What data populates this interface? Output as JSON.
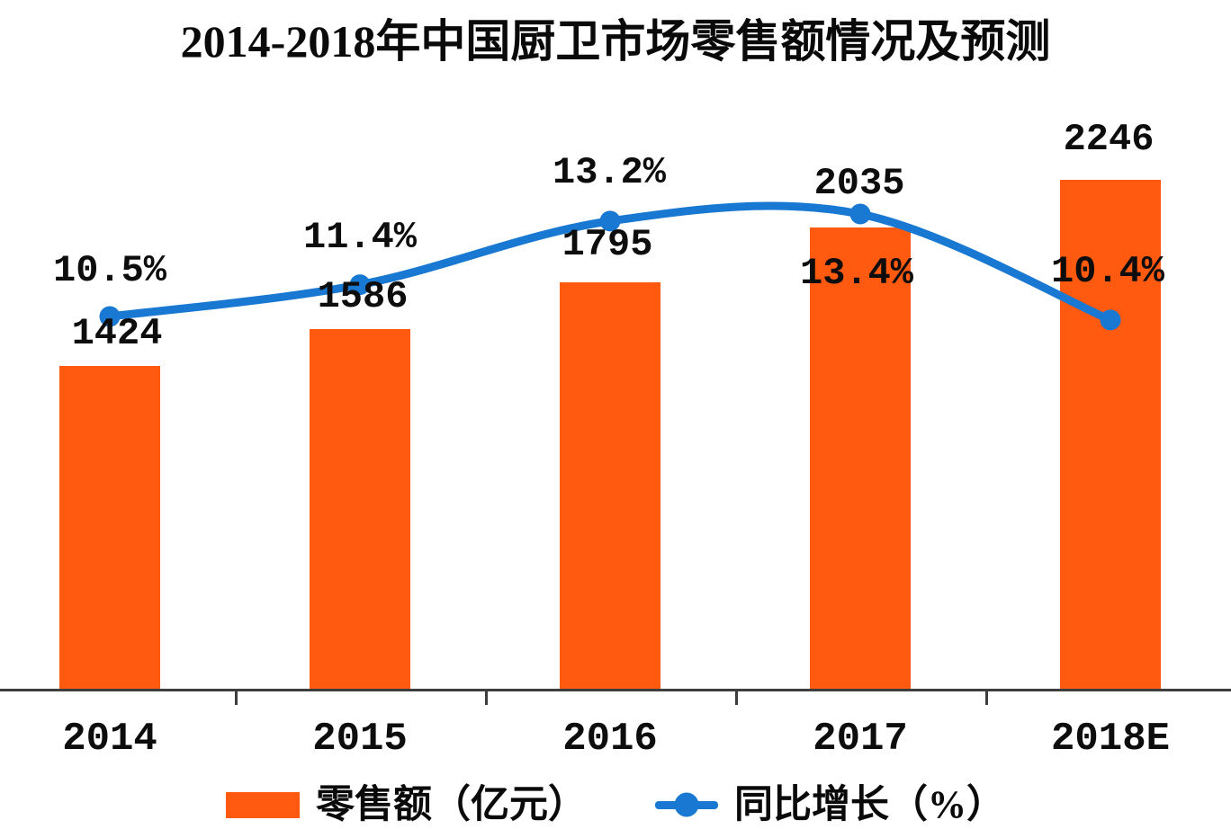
{
  "chart_data": {
    "type": "bar+line",
    "title": "2014-2018年中国厨卫市场零售额情况及预测",
    "categories": [
      "2014",
      "2015",
      "2016",
      "2017",
      "2018E"
    ],
    "series": [
      {
        "name": "零售额（亿元）",
        "type": "bar",
        "values": [
          1424,
          1586,
          1795,
          2035,
          2246
        ],
        "value_labels": [
          "1424",
          "1586",
          "1795",
          "2035",
          "2246"
        ],
        "color": "#ff5a10"
      },
      {
        "name": "同比增长（%）",
        "type": "line",
        "values": [
          10.5,
          11.4,
          13.2,
          13.4,
          10.4
        ],
        "value_labels": [
          "10.5%",
          "11.4%",
          "13.2%",
          "13.4%",
          "10.4%"
        ],
        "color": "#1878d2"
      }
    ],
    "ylim": [
      0,
      3000
    ],
    "y_axis_visible": false,
    "grid": false,
    "legend_position": "bottom"
  },
  "legend": {
    "bar_label": "零售额（亿元）",
    "line_label": "同比增长（%）"
  },
  "colors": {
    "bar": "#ff5a10",
    "line": "#1878d2",
    "axis": "#3d3d3d",
    "text": "#0d0d0d",
    "background": "#ffffff"
  }
}
